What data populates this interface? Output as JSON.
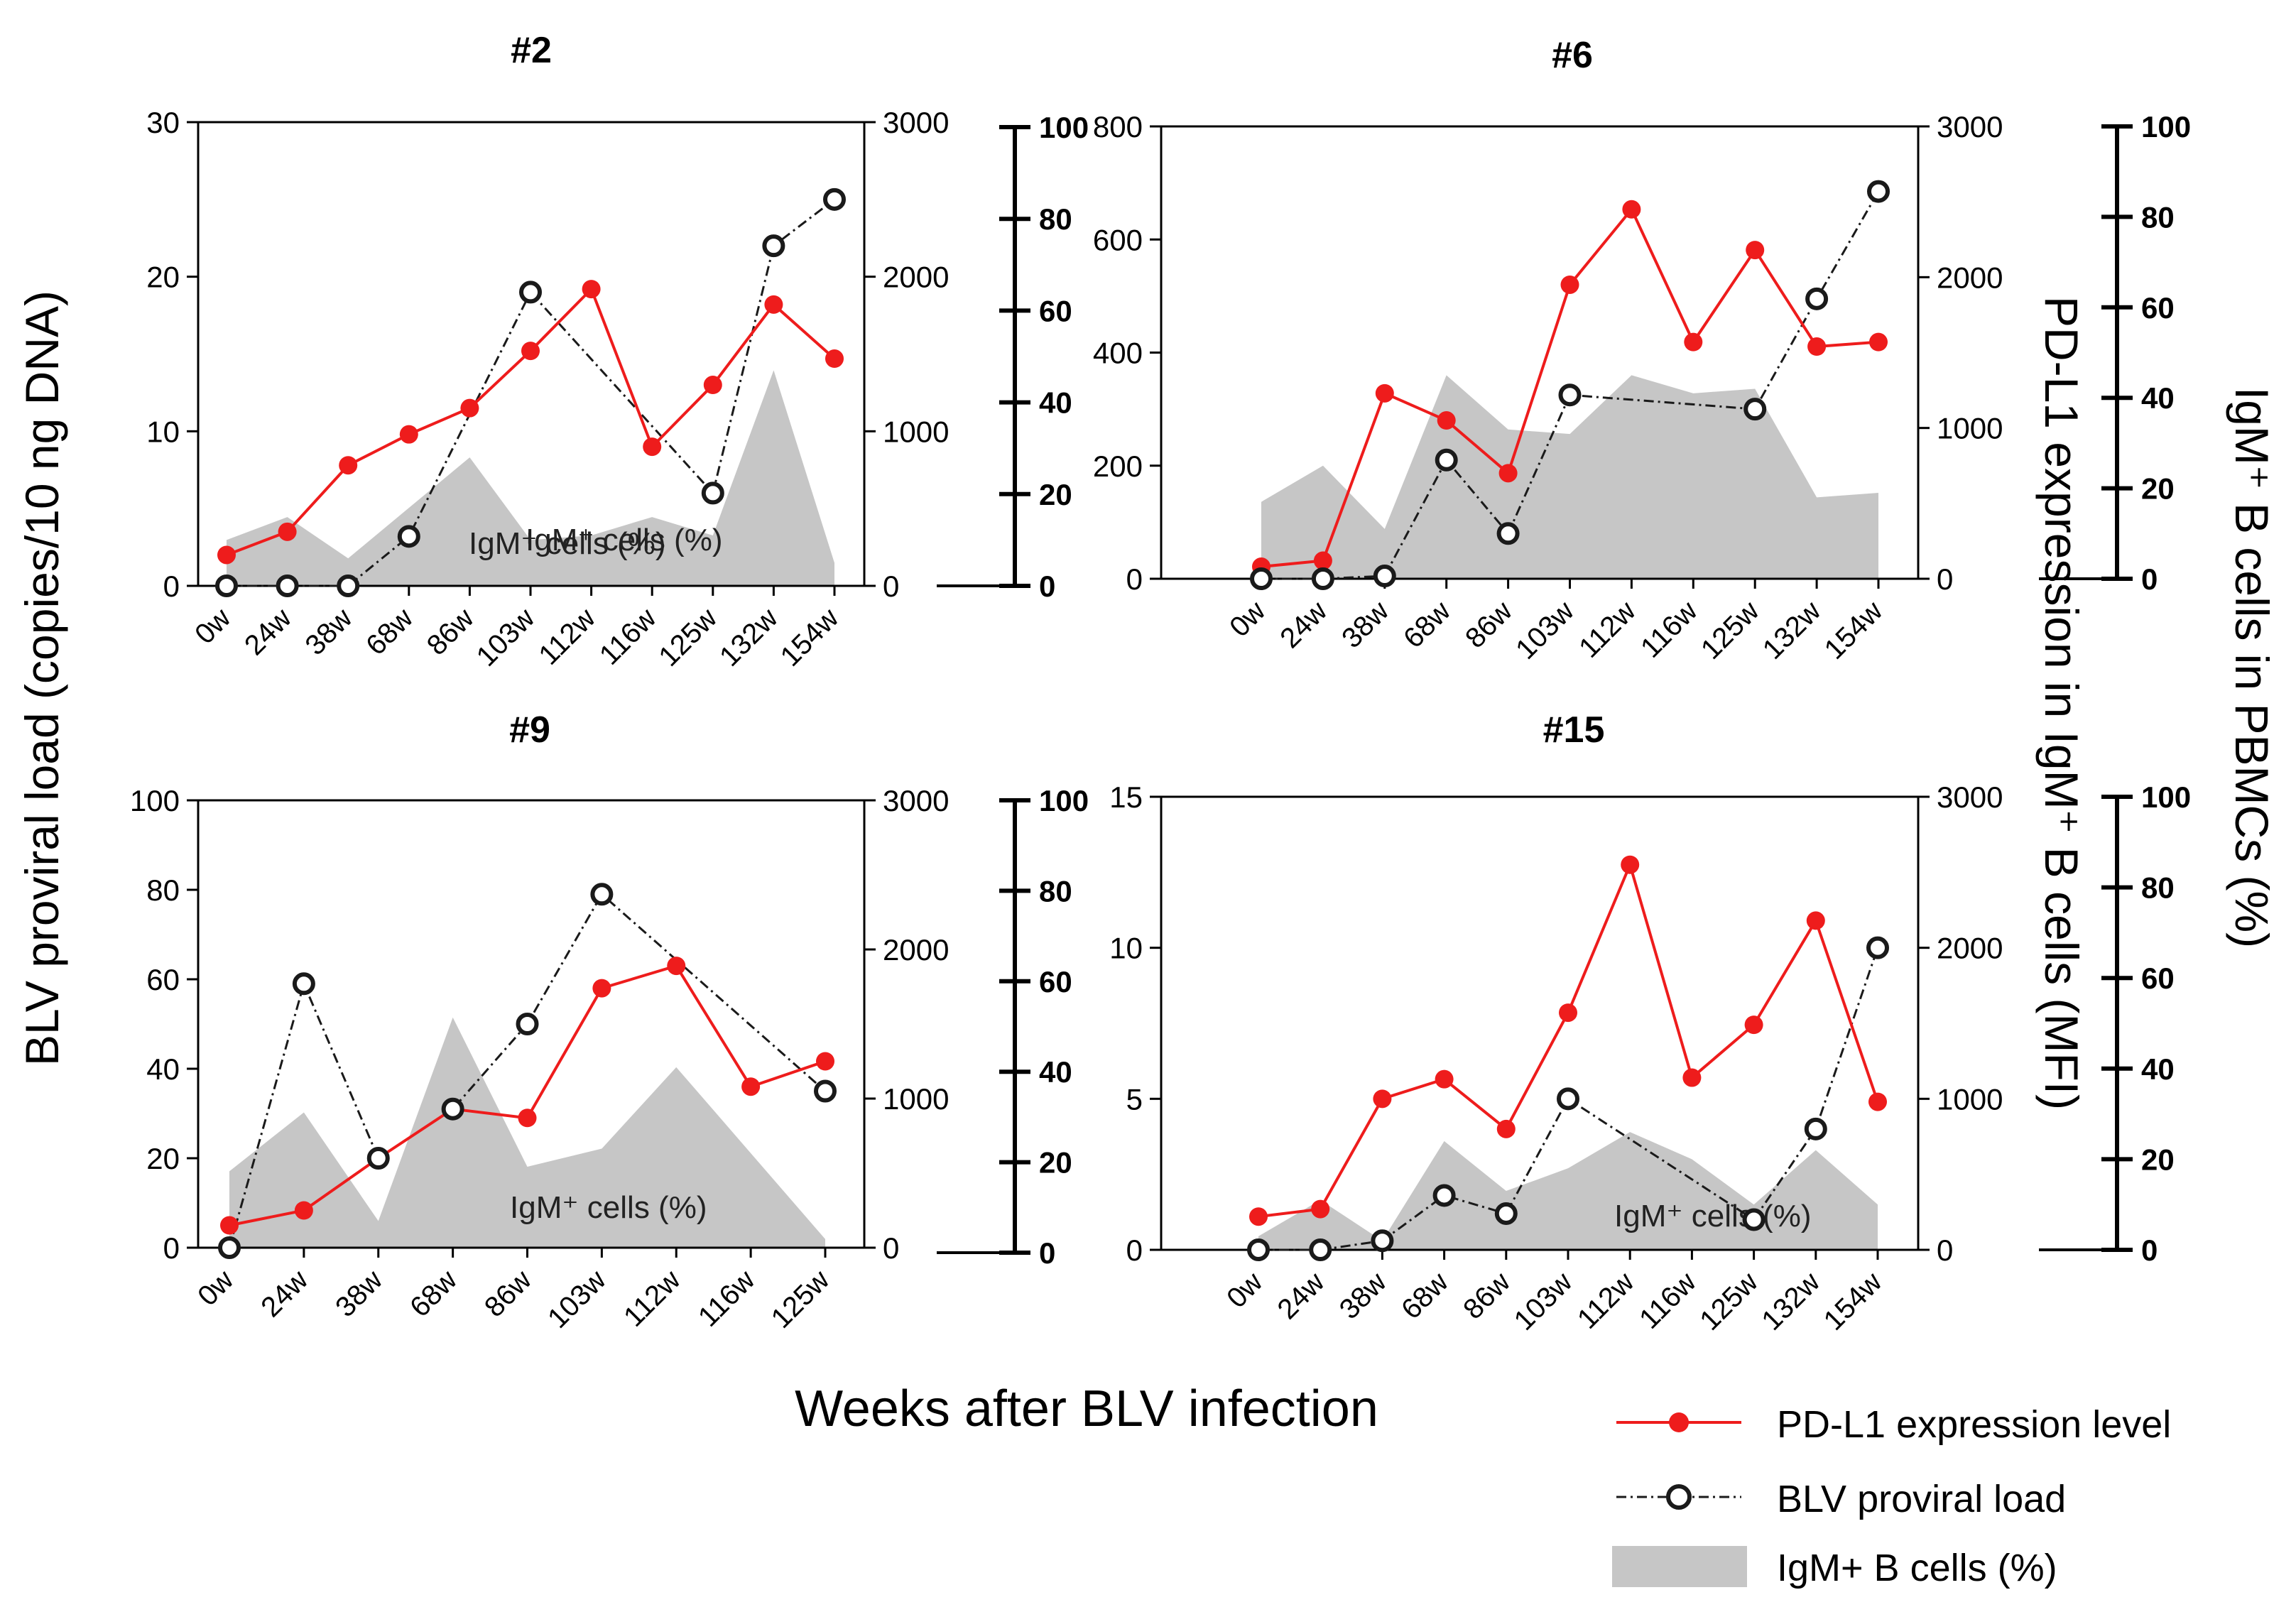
{
  "figure": {
    "y_left_label": "BLV proviral load (copies/10 ng DNA)",
    "y_mid_label": "PD-L1 expression in IgM⁺ B cells (MFI)",
    "y_right_label": "IgM⁺ B cells in PBMCs (%)",
    "x_label": "Weeks after BLV infection",
    "area_inline_label": "IgM⁺ cells (%)",
    "legend": {
      "pdl1": "PD-L1 expression level",
      "blv": "BLV proviral load",
      "igm": "IgM+ B cells (%)"
    },
    "colors": {
      "pdl1": "#ee1c1c",
      "blv": "#1a1a1a",
      "area": "#c6c6c6"
    }
  },
  "chart_data": [
    {
      "type": "line",
      "title": "#2",
      "categories": [
        "0w",
        "24w",
        "38w",
        "68w",
        "86w",
        "103w",
        "112w",
        "116w",
        "125w",
        "132w",
        "154w"
      ],
      "left_axis": {
        "ylim": [
          0,
          30
        ],
        "ticks": [
          0,
          10,
          20,
          30
        ],
        "label": "BLV proviral load (copies/10 ng DNA)"
      },
      "mid_axis": {
        "ylim": [
          0,
          3000
        ],
        "ticks": [
          0,
          1000,
          2000,
          3000
        ],
        "label": "PD-L1 expression in IgM⁺ B cells (MFI)"
      },
      "right_axis": {
        "ylim": [
          0,
          100
        ],
        "ticks": [
          0,
          20,
          40,
          60,
          80,
          100
        ],
        "label": "IgM⁺ B cells in PBMCs (%)"
      },
      "series": [
        {
          "name": "PD-L1 expression level",
          "axis": "mid",
          "values": [
            200,
            350,
            780,
            980,
            1150,
            1520,
            1920,
            900,
            1300,
            1820,
            1470
          ]
        },
        {
          "name": "BLV proviral load",
          "axis": "left",
          "values": [
            0,
            0,
            0,
            3.2,
            null,
            19,
            null,
            null,
            6,
            22,
            25
          ]
        },
        {
          "name": "IgM+ B cells (%)",
          "axis": "right",
          "values": [
            10,
            15,
            6,
            17,
            28,
            10,
            11,
            15,
            11,
            47,
            5
          ]
        }
      ]
    },
    {
      "type": "line",
      "title": "#6",
      "categories": [
        "0w",
        "24w",
        "38w",
        "68w",
        "86w",
        "103w",
        "112w",
        "116w",
        "125w",
        "132w",
        "154w"
      ],
      "left_axis": {
        "ylim": [
          0,
          800
        ],
        "ticks": [
          0,
          200,
          400,
          600,
          800
        ]
      },
      "mid_axis": {
        "ylim": [
          0,
          3000
        ],
        "ticks": [
          0,
          1000,
          2000,
          3000
        ]
      },
      "right_axis": {
        "ylim": [
          0,
          100
        ],
        "ticks": [
          0,
          20,
          40,
          60,
          80,
          100
        ]
      },
      "series": [
        {
          "name": "PD-L1 expression level",
          "axis": "mid",
          "values": [
            80,
            120,
            1230,
            1050,
            700,
            1950,
            2450,
            1570,
            2180,
            1540,
            1570
          ]
        },
        {
          "name": "BLV proviral load",
          "axis": "left",
          "values": [
            0,
            0,
            5,
            210,
            80,
            325,
            null,
            null,
            300,
            495,
            685
          ]
        },
        {
          "name": "IgM+ B cells (%)",
          "axis": "right",
          "values": [
            17,
            25,
            11,
            45,
            33,
            32,
            45,
            41,
            42,
            18,
            19
          ]
        }
      ]
    },
    {
      "type": "line",
      "title": "#9",
      "categories": [
        "0w",
        "24w",
        "38w",
        "68w",
        "86w",
        "103w",
        "112w",
        "116w",
        "125w"
      ],
      "left_axis": {
        "ylim": [
          0,
          100
        ],
        "ticks": [
          0,
          20,
          40,
          60,
          80,
          100
        ]
      },
      "mid_axis": {
        "ylim": [
          0,
          3000
        ],
        "ticks": [
          0,
          1000,
          2000,
          3000
        ]
      },
      "right_axis": {
        "ylim": [
          0,
          100
        ],
        "ticks": [
          0,
          20,
          40,
          60,
          80,
          100
        ]
      },
      "series": [
        {
          "name": "PD-L1 expression level",
          "axis": "mid",
          "values": [
            150,
            250,
            600,
            930,
            870,
            1740,
            1890,
            1080,
            1250
          ]
        },
        {
          "name": "BLV proviral load",
          "axis": "left",
          "values": [
            0,
            59,
            20,
            31,
            50,
            79,
            null,
            null,
            35
          ]
        },
        {
          "name": "IgM+ B cells (%)",
          "axis": "right",
          "values": [
            18,
            31,
            7,
            52,
            19,
            23,
            41,
            22,
            3
          ]
        }
      ]
    },
    {
      "type": "line",
      "title": "#15",
      "categories": [
        "0w",
        "24w",
        "38w",
        "68w",
        "86w",
        "103w",
        "112w",
        "116w",
        "125w",
        "132w",
        "154w"
      ],
      "left_axis": {
        "ylim": [
          0,
          15
        ],
        "ticks": [
          0,
          5,
          10,
          15
        ]
      },
      "mid_axis": {
        "ylim": [
          0,
          3000
        ],
        "ticks": [
          0,
          1000,
          2000,
          3000
        ]
      },
      "right_axis": {
        "ylim": [
          0,
          100
        ],
        "ticks": [
          0,
          20,
          40,
          60,
          80,
          100
        ]
      },
      "series": [
        {
          "name": "PD-L1 expression level",
          "axis": "mid",
          "values": [
            220,
            270,
            1000,
            1130,
            800,
            1570,
            2550,
            1140,
            1490,
            2180,
            980
          ]
        },
        {
          "name": "BLV proviral load",
          "axis": "left",
          "values": [
            0,
            0,
            0.3,
            1.8,
            1.2,
            5,
            null,
            null,
            1,
            4,
            10
          ]
        },
        {
          "name": "IgM+ B cells (%)",
          "axis": "right",
          "values": [
            3,
            11,
            2,
            24,
            13,
            18,
            26,
            20,
            10,
            22,
            10
          ]
        }
      ]
    }
  ]
}
